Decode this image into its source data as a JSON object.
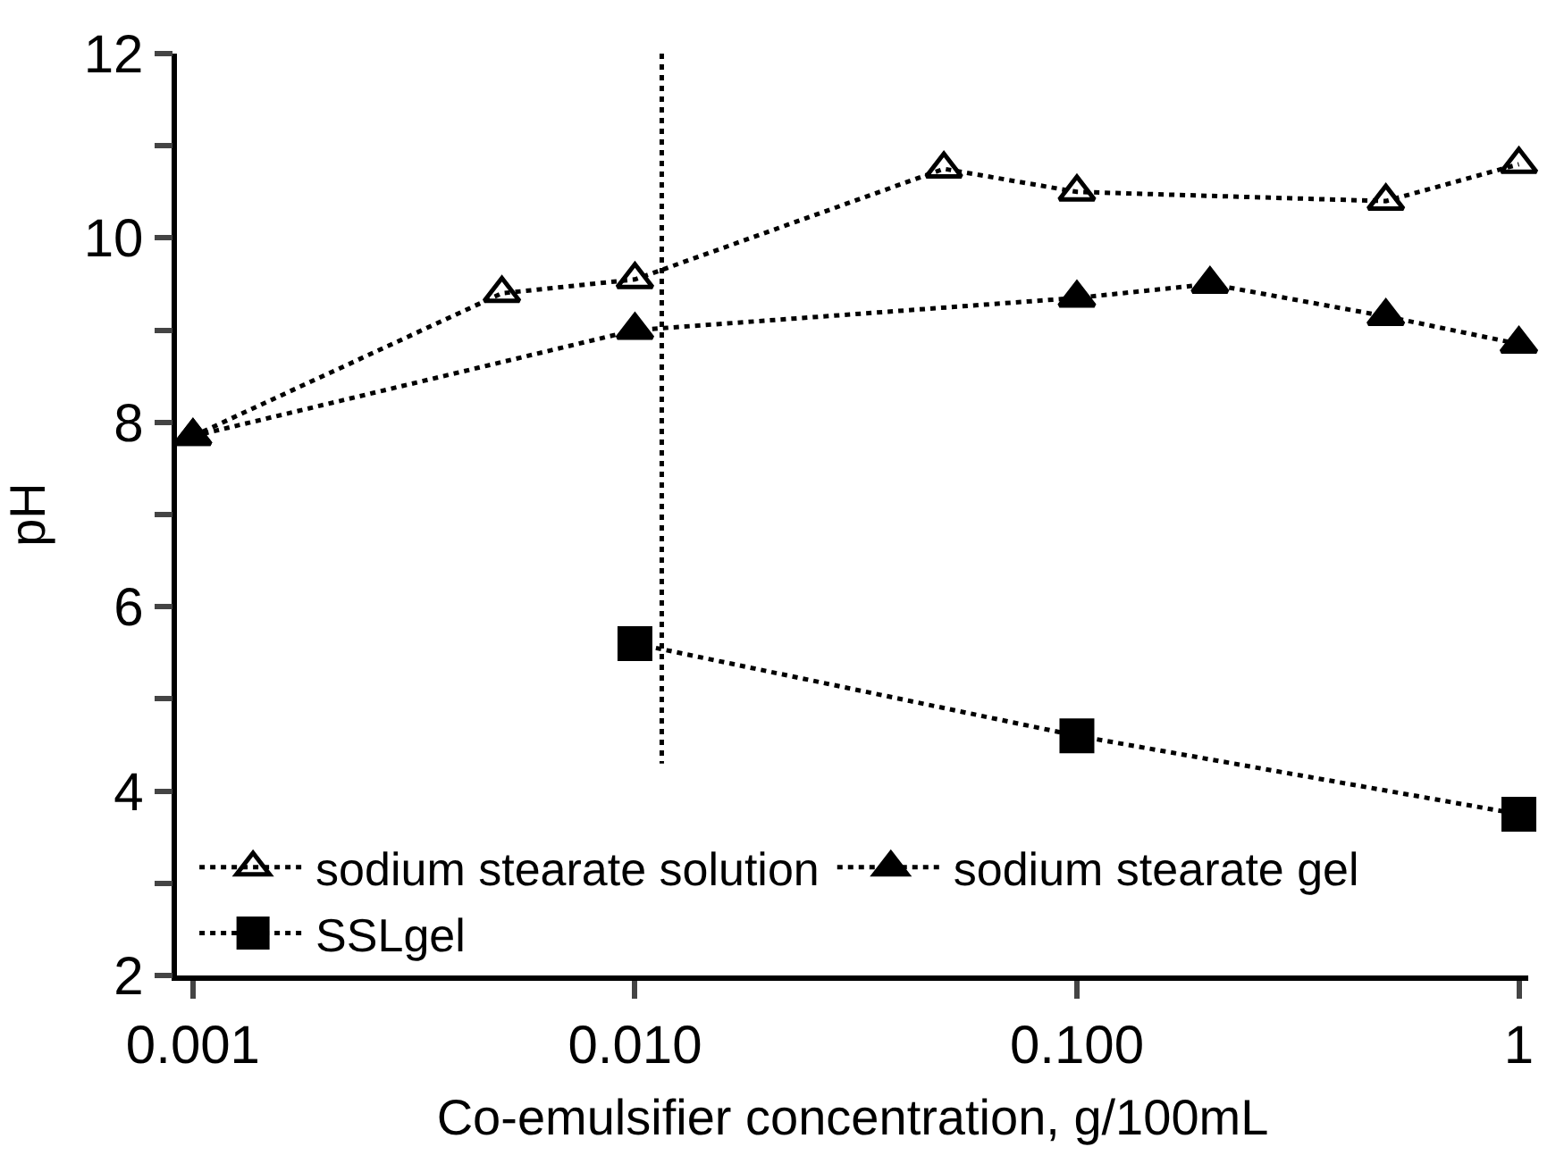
{
  "chart_data": {
    "type": "line",
    "xlabel": "Co-emulsifier concentration, g/100mL",
    "ylabel": "pH",
    "log": "x",
    "xlim": [
      0.00092,
      1.05
    ],
    "ylim": [
      2,
      12
    ],
    "xticks": [
      {
        "value": 0.001,
        "label": "0.001"
      },
      {
        "value": 0.01,
        "label": "0.010"
      },
      {
        "value": 0.1,
        "label": "0.100"
      },
      {
        "value": 1,
        "label": "1"
      }
    ],
    "yticks": [
      2,
      {
        "value": 3,
        "label": null
      },
      4,
      {
        "value": 5,
        "label": null
      },
      6,
      {
        "value": 7,
        "label": null
      },
      8,
      {
        "value": 9,
        "label": null
      },
      10,
      {
        "value": 11,
        "label": null
      },
      12
    ],
    "legend": "bottom left",
    "line_style": "dotted",
    "series": [
      {
        "name": "sodium stearate solution",
        "color": "#000000",
        "marker": "triangle-open",
        "x": [
          0.001,
          0.005,
          0.01,
          0.05,
          0.1,
          0.5,
          1
        ],
        "values": [
          7.85,
          9.4,
          9.55,
          10.75,
          10.5,
          10.4,
          10.8
        ]
      },
      {
        "name": "sodium stearate gel",
        "color": "#000000",
        "marker": "triangle",
        "x": [
          0.001,
          0.01,
          0.1,
          0.2,
          0.5,
          1
        ],
        "values": [
          7.85,
          9.0,
          9.35,
          9.5,
          9.15,
          8.85
        ]
      },
      {
        "name": "SSLgel",
        "color": "#000000",
        "marker": "square",
        "x": [
          0.01,
          0.1,
          1
        ],
        "values": [
          5.6,
          4.6,
          3.75
        ]
      },
      {
        "color": "#000000",
        "marker": "none",
        "x": [
          0.0115,
          0.0115
        ],
        "values": [
          12,
          4.3
        ]
      }
    ]
  }
}
